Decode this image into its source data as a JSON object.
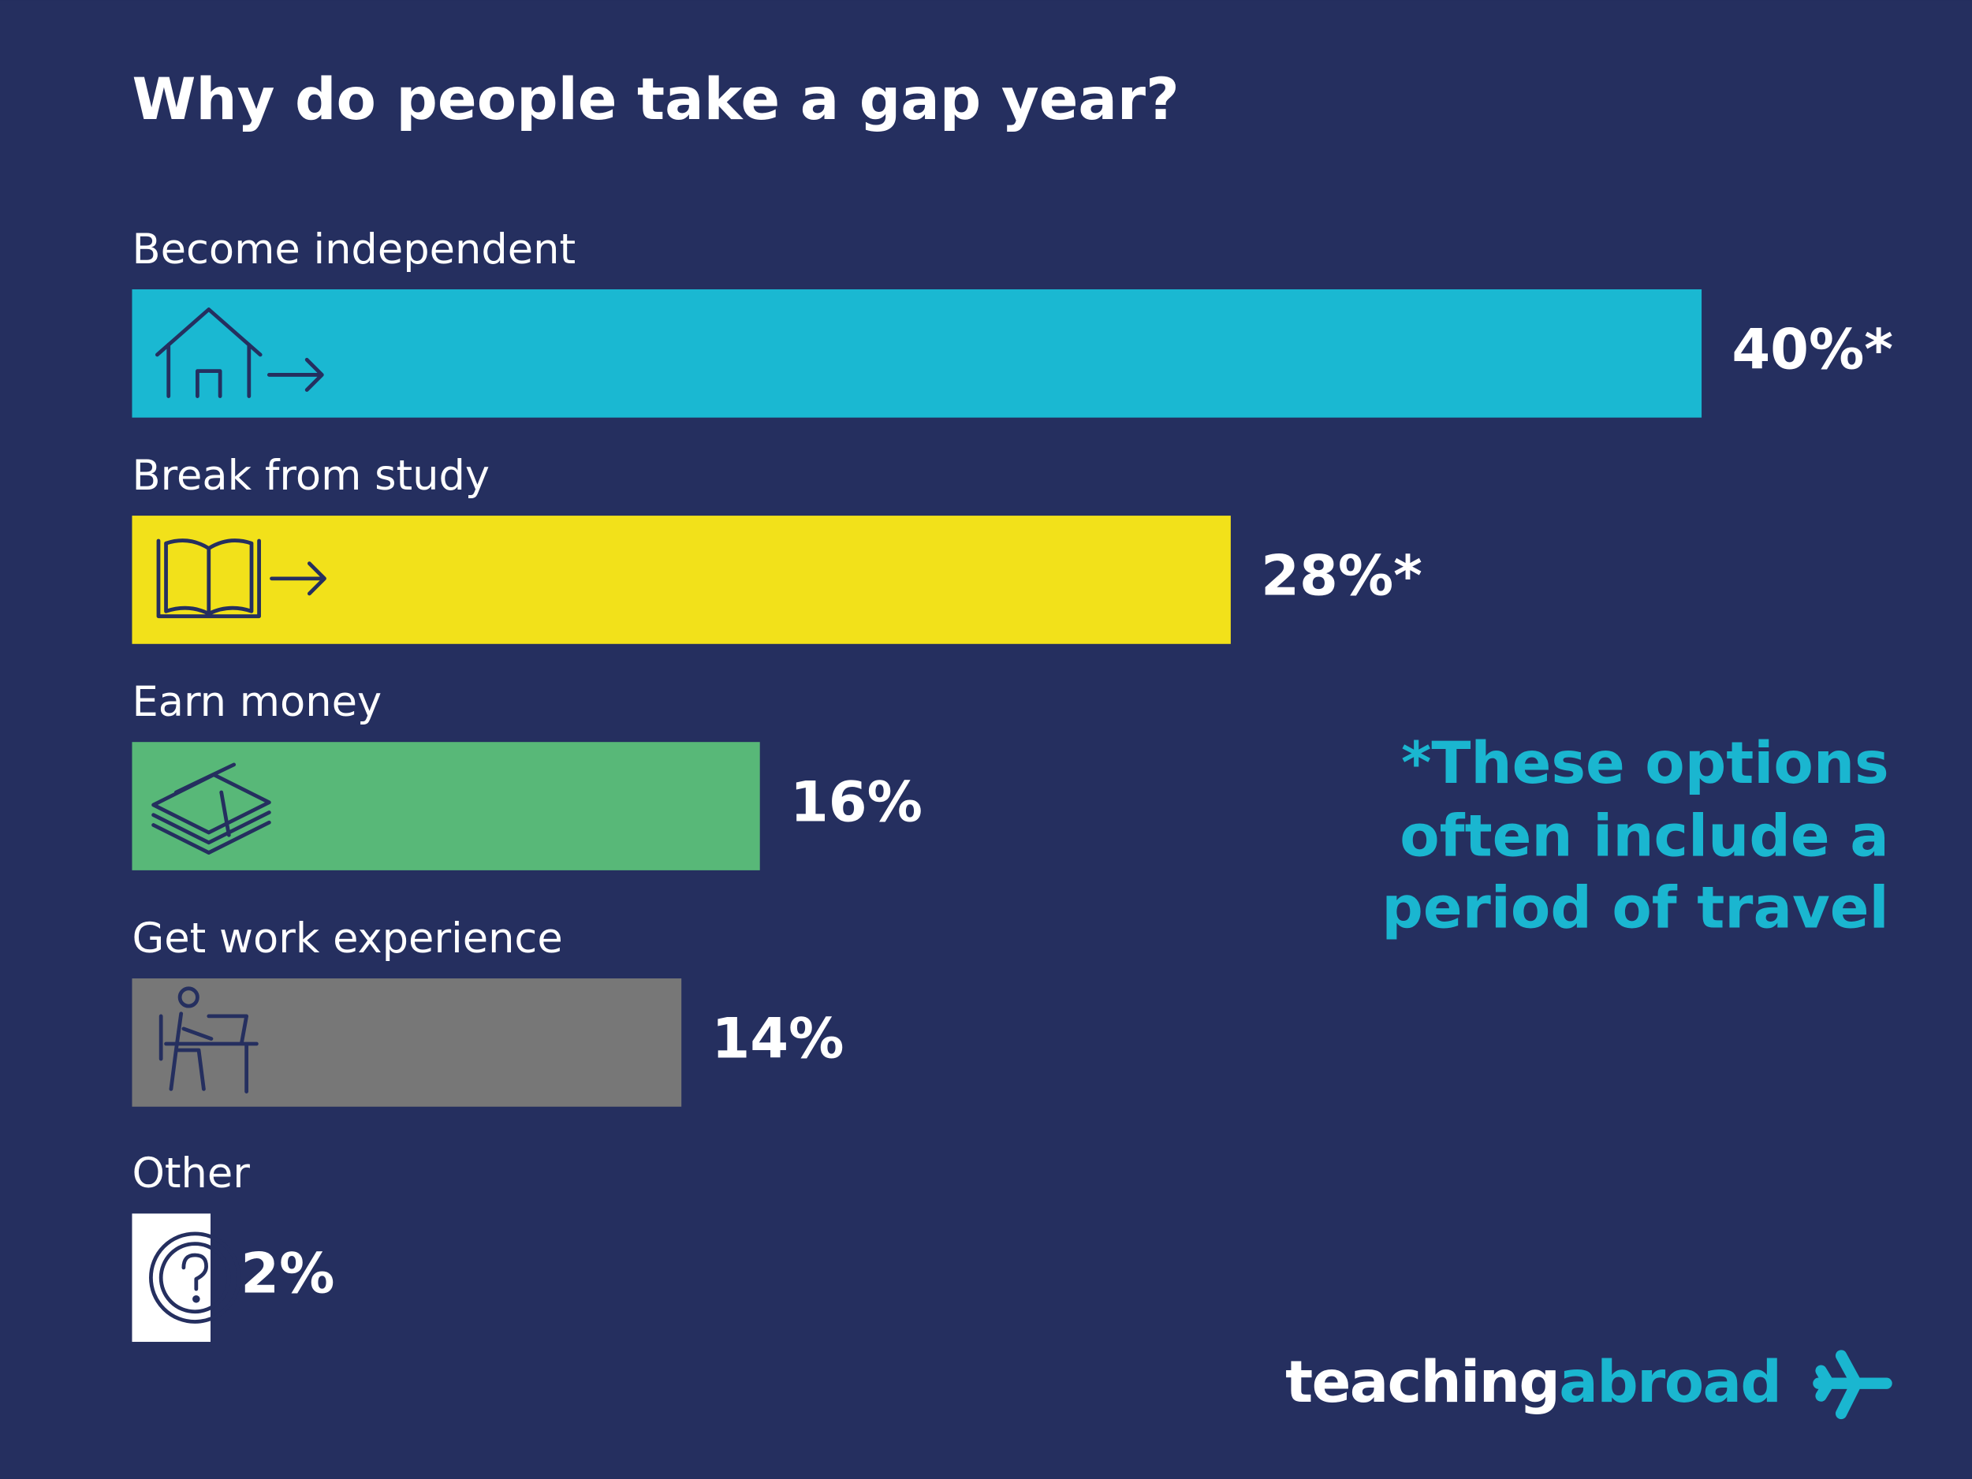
{
  "chart_data": {
    "type": "bar",
    "title": "Why do people take a gap year?",
    "categories": [
      "Become independent",
      "Break from study",
      "Earn money",
      "Get work experience",
      "Other"
    ],
    "values": [
      40,
      28,
      16,
      14,
      2
    ],
    "value_labels": [
      "40%*",
      "28%*",
      "16%",
      "14%",
      "2%"
    ],
    "colors": [
      "#1ab8d2",
      "#f2e11a",
      "#58b878",
      "#777777",
      "#ffffff"
    ],
    "annotation": [
      "*These options",
      "often include a",
      "period of travel"
    ]
  },
  "logo": [
    "teaching",
    "abroad"
  ]
}
